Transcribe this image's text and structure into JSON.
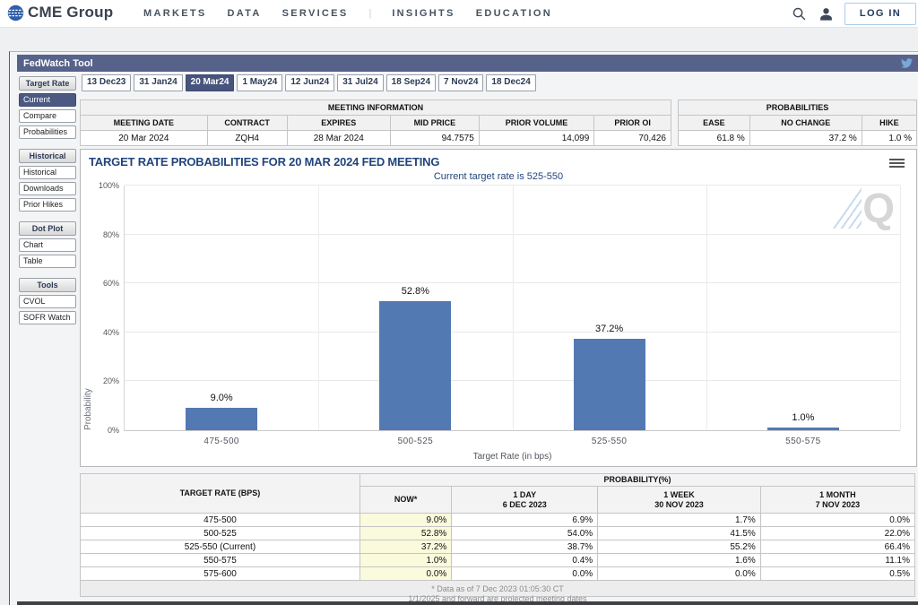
{
  "nav": {
    "logo_text": "CME Group",
    "items": [
      "MARKETS",
      "DATA",
      "SERVICES",
      "INSIGHTS",
      "EDUCATION"
    ],
    "separator_after_index": 2,
    "separator": "|",
    "login_label": "LOG IN"
  },
  "fedwatch_bar": {
    "title": "FedWatch Tool"
  },
  "meeting_tabs": [
    "13 Dec23",
    "31 Jan24",
    "20 Mar24",
    "1 May24",
    "12 Jun24",
    "31 Jul24",
    "18 Sep24",
    "7 Nov24",
    "18 Dec24"
  ],
  "selected_tab": "20 Mar24",
  "sidebar": {
    "selected_item": "Current",
    "sections": [
      {
        "header": "Target Rate",
        "items": [
          "Current",
          "Compare",
          "Probabilities"
        ]
      },
      {
        "header": "Historical",
        "items": [
          "Historical",
          "Downloads",
          "Prior Hikes"
        ]
      },
      {
        "header": "Dot Plot",
        "items": [
          "Chart",
          "Table"
        ]
      },
      {
        "header": "Tools",
        "items": [
          "CVOL",
          "SOFR Watch"
        ]
      }
    ]
  },
  "meeting_info": {
    "title": "MEETING INFORMATION",
    "columns": [
      "MEETING DATE",
      "CONTRACT",
      "EXPIRES",
      "MID PRICE",
      "PRIOR VOLUME",
      "PRIOR OI"
    ],
    "values": [
      "20 Mar 2024",
      "ZQH4",
      "28 Mar 2024",
      "94.7575",
      "14,099",
      "70,426"
    ],
    "right_aligned_from": 3,
    "col_widths_pct": [
      21.5,
      13.5,
      17.5,
      15,
      19.5,
      13
    ]
  },
  "probability_summary": {
    "title": "PROBABILITIES",
    "columns": [
      "EASE",
      "NO CHANGE",
      "HIKE"
    ],
    "values": [
      "61.8 %",
      "37.2 %",
      "1.0 %"
    ],
    "col_widths_pct": [
      30,
      47,
      23
    ]
  },
  "chart": {
    "menu_icon": "hamburger-icon",
    "watermark_letter": "Q"
  },
  "chart_data": {
    "type": "bar",
    "title": "TARGET RATE PROBABILITIES FOR 20 MAR 2024 FED MEETING",
    "subtitle": "Current target rate is 525-550",
    "categories": [
      "475-500",
      "500-525",
      "525-550",
      "550-575"
    ],
    "values": [
      9.0,
      52.8,
      37.2,
      1.0
    ],
    "data_labels": [
      "9.0%",
      "52.8%",
      "37.2%",
      "1.0%"
    ],
    "xlabel": "Target Rate (in bps)",
    "ylabel": "Probability",
    "ylim": [
      0,
      100
    ],
    "ytick_labels": [
      "0%",
      "20%",
      "40%",
      "60%",
      "80%",
      "100%"
    ],
    "grid": true,
    "legend": "none",
    "bar_color": "#5379b2"
  },
  "probability_table": {
    "rate_header": "TARGET RATE (BPS)",
    "group_header": "PROBABILITY(%)",
    "columns": [
      {
        "line1": "NOW*",
        "line2": ""
      },
      {
        "line1": "1 DAY",
        "line2": "6 DEC 2023"
      },
      {
        "line1": "1 WEEK",
        "line2": "30 NOV 2023"
      },
      {
        "line1": "1 MONTH",
        "line2": "7 NOV 2023"
      }
    ],
    "col_widths_pct": [
      33.5,
      11,
      17.5,
      19.5,
      18.5
    ],
    "rows": [
      {
        "rate": "475-500",
        "values": [
          "9.0%",
          "6.9%",
          "1.7%",
          "0.0%"
        ]
      },
      {
        "rate": "500-525",
        "values": [
          "52.8%",
          "54.0%",
          "41.5%",
          "22.0%"
        ]
      },
      {
        "rate": "525-550 (Current)",
        "values": [
          "37.2%",
          "38.7%",
          "55.2%",
          "66.4%"
        ]
      },
      {
        "rate": "550-575",
        "values": [
          "1.0%",
          "0.4%",
          "1.6%",
          "11.1%"
        ]
      },
      {
        "rate": "575-600",
        "values": [
          "0.0%",
          "0.0%",
          "0.0%",
          "0.5%"
        ]
      }
    ],
    "footnote": "* Data as of 7 Dec 2023 01:05:30 CT"
  },
  "footer_note": "1/1/2025 and forward are projected meeting dates",
  "colors": {
    "header_bar": "#57628a",
    "selected_nav": "#47547d",
    "bar_fill": "#5379b2",
    "now_column_bg": "#fafadc",
    "chart_title_text": "#21457c",
    "login_border": "#a9cdec"
  }
}
